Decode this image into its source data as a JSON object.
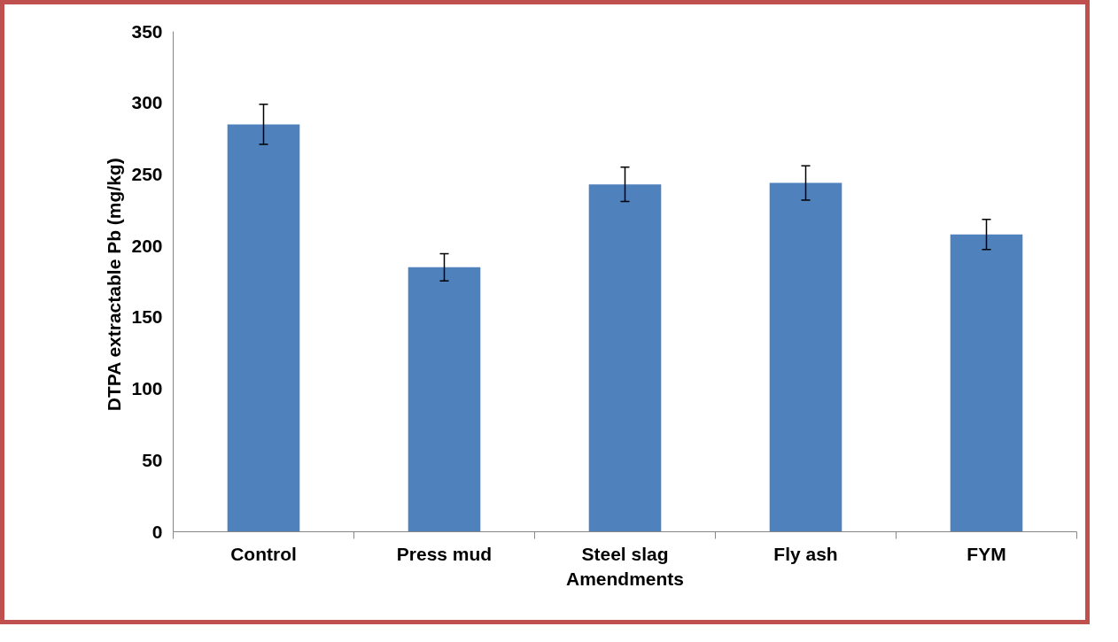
{
  "chart_data": {
    "type": "bar",
    "xlabel": "Amendments",
    "ylabel": "DTPA  extractable Pb (mg/kg)",
    "categories": [
      "Control",
      "Press mud",
      "Steel slag",
      "Fly ash",
      "FYM"
    ],
    "values": [
      285,
      185,
      243,
      244,
      208
    ],
    "errors": [
      14,
      9.5,
      12,
      12,
      10.5
    ],
    "color": "#4f81bd",
    "ylim": [
      0,
      350
    ],
    "yticks": [
      0,
      50,
      100,
      150,
      200,
      250,
      300,
      350
    ],
    "grid": false
  }
}
